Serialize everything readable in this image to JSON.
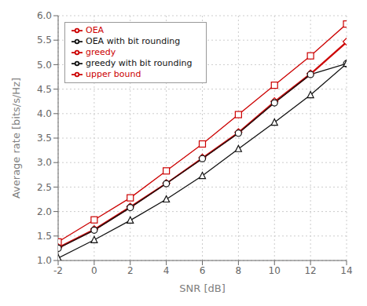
{
  "chart_data": {
    "type": "line",
    "xlabel": "SNR [dB]",
    "ylabel": "Average rate [bits/s/Hz]",
    "x": [
      -2,
      0,
      2,
      4,
      6,
      8,
      10,
      12,
      14
    ],
    "series": [
      {
        "name": "upper bound",
        "color": "#cc0000",
        "marker": "square",
        "values": [
          1.38,
          1.83,
          2.28,
          2.83,
          3.38,
          3.98,
          4.58,
          5.18,
          5.83
        ]
      },
      {
        "name": "OEA",
        "color": "#cc0000",
        "marker": "diamond",
        "values": [
          1.27,
          1.64,
          2.1,
          2.58,
          3.1,
          3.62,
          4.25,
          4.82,
          5.47
        ]
      },
      {
        "name": "greedy",
        "color": "#cc0000",
        "marker": "none",
        "values": [
          1.25,
          1.62,
          2.08,
          2.57,
          3.08,
          3.6,
          4.22,
          4.8,
          5.45
        ]
      },
      {
        "name": "OEA with bit rounding",
        "color": "#111111",
        "marker": "circle",
        "values": [
          1.25,
          1.62,
          2.08,
          2.57,
          3.08,
          3.6,
          4.22,
          4.8,
          5.02
        ]
      },
      {
        "name": "greedy with bit rounding",
        "color": "#111111",
        "marker": "triangle",
        "values": [
          1.05,
          1.42,
          1.82,
          2.25,
          2.73,
          3.28,
          3.82,
          4.38,
          5.02
        ]
      }
    ],
    "xlim": [
      -2,
      14
    ],
    "ylim": [
      1,
      6
    ],
    "xticks": [
      -2,
      0,
      2,
      4,
      6,
      8,
      10,
      12,
      14
    ],
    "yticks": [
      {
        "value": 1,
        "label": "1.0"
      },
      1.5,
      {
        "value": 2,
        "label": "2.0"
      },
      2.5,
      {
        "value": 3,
        "label": "3.0"
      },
      3.5,
      {
        "value": 4,
        "label": "4.0"
      },
      4.5,
      {
        "value": 5,
        "label": "5.0"
      },
      5.5,
      {
        "value": 6,
        "label": "6.0"
      }
    ],
    "grid": true,
    "legend": "upper left"
  }
}
